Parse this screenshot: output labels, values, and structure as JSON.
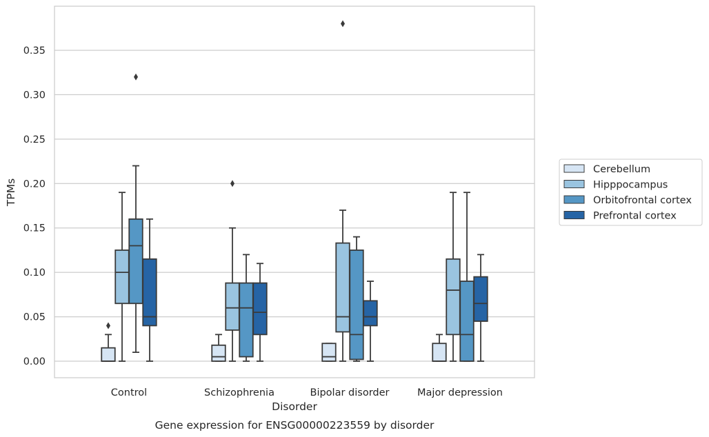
{
  "chart_data": {
    "type": "boxplot",
    "title": "",
    "caption": "Gene expression for ENSG00000223559 by disorder",
    "xlabel": "Disorder",
    "ylabel": "TPMs",
    "ylim": [
      -0.018,
      0.39
    ],
    "yticks": [
      "0.00",
      "0.05",
      "0.10",
      "0.15",
      "0.20",
      "0.25",
      "0.30",
      "0.35"
    ],
    "ytick_values": [
      0,
      0.05,
      0.1,
      0.15,
      0.2,
      0.25,
      0.3,
      0.35
    ],
    "grid": "horizontal",
    "legend_placement": "right",
    "categories": [
      "Control",
      "Schizophrenia",
      "Bipolar disorder",
      "Major depression"
    ],
    "series": [
      {
        "name": "Cerebellum",
        "color": "#d6e5f4",
        "boxes": [
          {
            "whislo": 0.0,
            "q1": 0.0,
            "med": 0.0,
            "q3": 0.015,
            "whishi": 0.03,
            "fliers": [
              0.04
            ]
          },
          {
            "whislo": 0.0,
            "q1": 0.0,
            "med": 0.005,
            "q3": 0.018,
            "whishi": 0.03,
            "fliers": []
          },
          {
            "whislo": 0.0,
            "q1": 0.0,
            "med": 0.005,
            "q3": 0.02,
            "whishi": 0.02,
            "fliers": []
          },
          {
            "whislo": 0.0,
            "q1": 0.0,
            "med": 0.0,
            "q3": 0.02,
            "whishi": 0.03,
            "fliers": []
          }
        ]
      },
      {
        "name": "Hipppocampus",
        "color": "#9ac4e0",
        "boxes": [
          {
            "whislo": 0.0,
            "q1": 0.065,
            "med": 0.1,
            "q3": 0.125,
            "whishi": 0.19,
            "fliers": []
          },
          {
            "whislo": 0.0,
            "q1": 0.035,
            "med": 0.06,
            "q3": 0.088,
            "whishi": 0.15,
            "fliers": [
              0.2
            ]
          },
          {
            "whislo": 0.0,
            "q1": 0.033,
            "med": 0.05,
            "q3": 0.133,
            "whishi": 0.17,
            "fliers": [
              0.38
            ]
          },
          {
            "whislo": 0.0,
            "q1": 0.03,
            "med": 0.08,
            "q3": 0.115,
            "whishi": 0.19,
            "fliers": []
          }
        ]
      },
      {
        "name": "Orbitofrontal cortex",
        "color": "#5597c5",
        "boxes": [
          {
            "whislo": 0.01,
            "q1": 0.065,
            "med": 0.13,
            "q3": 0.16,
            "whishi": 0.22,
            "fliers": [
              0.32
            ]
          },
          {
            "whislo": 0.0,
            "q1": 0.005,
            "med": 0.06,
            "q3": 0.088,
            "whishi": 0.12,
            "fliers": []
          },
          {
            "whislo": 0.0,
            "q1": 0.002,
            "med": 0.03,
            "q3": 0.125,
            "whishi": 0.14,
            "fliers": []
          },
          {
            "whislo": 0.0,
            "q1": 0.0,
            "med": 0.03,
            "q3": 0.09,
            "whishi": 0.19,
            "fliers": []
          }
        ]
      },
      {
        "name": "Prefrontal cortex",
        "color": "#2664a5",
        "boxes": [
          {
            "whislo": 0.0,
            "q1": 0.04,
            "med": 0.05,
            "q3": 0.115,
            "whishi": 0.16,
            "fliers": []
          },
          {
            "whislo": 0.0,
            "q1": 0.03,
            "med": 0.055,
            "q3": 0.088,
            "whishi": 0.11,
            "fliers": []
          },
          {
            "whislo": 0.0,
            "q1": 0.04,
            "med": 0.05,
            "q3": 0.068,
            "whishi": 0.09,
            "fliers": []
          },
          {
            "whislo": 0.0,
            "q1": 0.045,
            "med": 0.065,
            "q3": 0.095,
            "whishi": 0.12,
            "fliers": []
          }
        ]
      }
    ]
  }
}
